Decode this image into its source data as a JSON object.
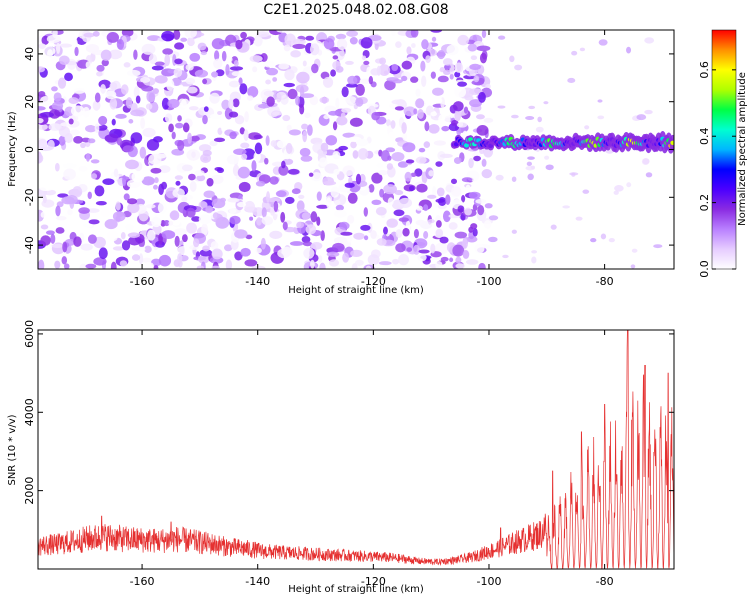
{
  "title": "C2E1.2025.048.02.08.G08",
  "colors": {
    "snr_line": "#e53030",
    "frame": "#000000",
    "background": "#ffffff"
  },
  "chart_data": [
    {
      "type": "heatmap",
      "xlabel": "Height of straight line (km)",
      "ylabel": "Frequency (Hz)",
      "colorbar_label": "Normalized spectral amplitude",
      "xlim": [
        -178,
        -68
      ],
      "ylim": [
        -50,
        50
      ],
      "x_ticks": [
        -160,
        -140,
        -120,
        -100,
        -80
      ],
      "y_ticks": [
        -40,
        -20,
        0,
        20,
        40
      ],
      "colorbar_range": [
        0,
        0.72
      ],
      "colorbar_ticks": [
        0.0,
        0.2,
        0.4,
        0.6
      ],
      "colormap": [
        "#ffffff",
        "#e6ccff",
        "#b980ff",
        "#8a2be2",
        "#4b00ff",
        "#0000ff",
        "#00b7ff",
        "#00ffd0",
        "#00ff44",
        "#b0ff00",
        "#ffff00",
        "#ff9000",
        "#ff0000"
      ],
      "features": [
        {
          "description": "scattered noise",
          "x_range": [
            -178,
            -100
          ],
          "y_range": [
            -50,
            50
          ],
          "amplitude_range": [
            0.0,
            0.22
          ]
        },
        {
          "description": "carrier line",
          "x_range": [
            -106,
            -68
          ],
          "frequency_hz": 3,
          "amplitude_range": [
            0.2,
            0.65
          ]
        }
      ]
    },
    {
      "type": "line",
      "xlabel": "Height of straight line (km)",
      "ylabel": "SNR (10 * v/v)",
      "xlim": [
        -178,
        -68
      ],
      "ylim": [
        0,
        6100
      ],
      "x_ticks": [
        -160,
        -140,
        -120,
        -100,
        -80
      ],
      "y_ticks": [
        2000,
        4000,
        6000
      ],
      "series": [
        {
          "x": [
            -178,
            -175,
            -172,
            -169,
            -166,
            -163,
            -160,
            -157,
            -154,
            -151,
            -148,
            -145,
            -142,
            -139,
            -136,
            -133,
            -130,
            -127,
            -124,
            -121,
            -118,
            -115,
            -112,
            -109,
            -106,
            -103,
            -100,
            -97,
            -94,
            -91,
            -89,
            -87,
            -85,
            -83,
            -81,
            -79,
            -77,
            -76,
            -75,
            -73,
            -71,
            -69,
            -68
          ],
          "y": [
            600,
            620,
            700,
            780,
            820,
            760,
            740,
            720,
            760,
            700,
            640,
            560,
            520,
            450,
            420,
            400,
            380,
            360,
            340,
            320,
            300,
            260,
            200,
            180,
            220,
            300,
            450,
            600,
            750,
            900,
            1300,
            1700,
            2000,
            2300,
            2600,
            2900,
            3300,
            5200,
            3600,
            3800,
            3500,
            3200,
            3100
          ],
          "peaks": [
            {
              "x": -167,
              "y": 1350
            },
            {
              "x": -155,
              "y": 1200
            },
            {
              "x": -98,
              "y": 1050
            },
            {
              "x": -89,
              "y": 2500
            },
            {
              "x": -84,
              "y": 3500
            },
            {
              "x": -80,
              "y": 4200
            },
            {
              "x": -76,
              "y": 6100
            },
            {
              "x": -73,
              "y": 5200
            },
            {
              "x": -69,
              "y": 5000
            }
          ]
        }
      ]
    }
  ]
}
